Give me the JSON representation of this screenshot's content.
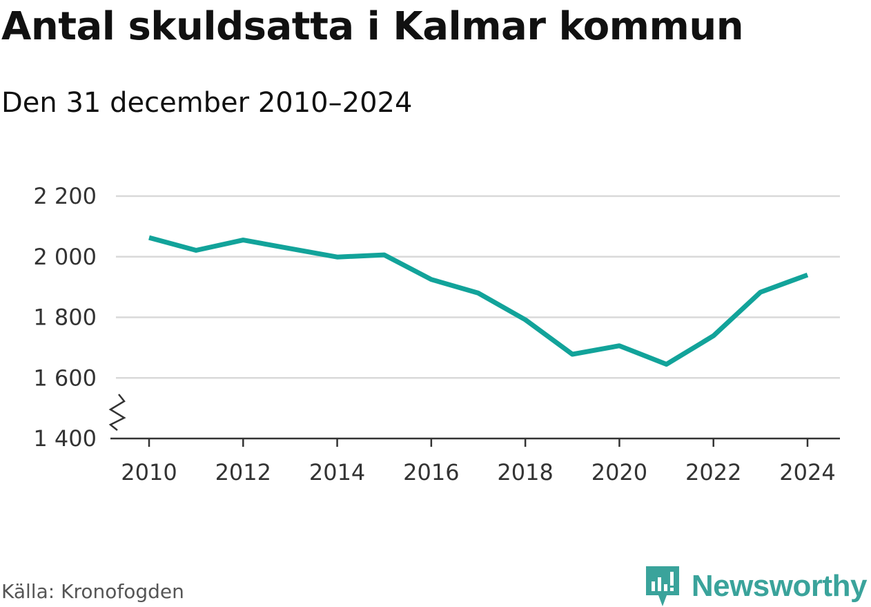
{
  "title": "Antal skuldsatta i Kalmar kommun",
  "subtitle": "Den 31 december 2010–2024",
  "source": "Källa: Kronofogden",
  "brand": "Newsworthy",
  "colors": {
    "line": "#12a39a",
    "grid": "#d9d9d9",
    "axis": "#333333",
    "brand": "#3aa39b"
  },
  "chart_data": {
    "type": "line",
    "title": "Antal skuldsatta i Kalmar kommun",
    "subtitle": "Den 31 december 2010–2024",
    "x": [
      2010,
      2011,
      2012,
      2013,
      2014,
      2015,
      2016,
      2017,
      2018,
      2019,
      2020,
      2021,
      2022,
      2023,
      2024
    ],
    "series": [
      {
        "values": [
          2063,
          2021,
          2055,
          2027,
          1999,
          2006,
          1925,
          1880,
          1792,
          1678,
          1706,
          1645,
          1739,
          1883,
          1940
        ]
      }
    ],
    "xlim": [
      2010,
      2024
    ],
    "ylim": [
      1400,
      2200
    ],
    "y_ticks": [
      1400,
      1600,
      1800,
      2000,
      2200
    ],
    "y_tick_labels": [
      "1 400",
      "1 600",
      "1 800",
      "2 000",
      "2 200"
    ],
    "x_ticks": [
      2010,
      2012,
      2014,
      2016,
      2018,
      2020,
      2022,
      2024
    ],
    "x_tick_labels": [
      "2010",
      "2012",
      "2014",
      "2016",
      "2018",
      "2020",
      "2022",
      "2024"
    ],
    "axis_break": true,
    "grid": true,
    "xlabel": "",
    "ylabel": ""
  }
}
